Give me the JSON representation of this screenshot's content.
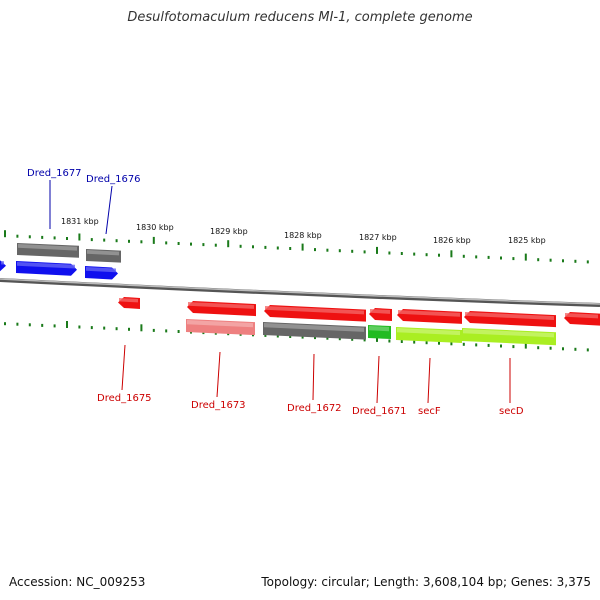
{
  "title": "Desulfotomaculum reducens MI-1, complete genome",
  "footer": {
    "accession": "Accession: NC_009253",
    "info": "Topology: circular; Length: 3,608,104 bp; Genes: 3,375"
  },
  "colors": {
    "forward_label": "#0000aa",
    "reverse_label": "#cc0000",
    "backbone": "#888888",
    "ticks": "#1a7a1a",
    "blue": "#1010ee",
    "red": "#ee1111",
    "gray": "#666666",
    "pink": "#ee8080",
    "green": "#22bb22",
    "lime": "#aaee22"
  },
  "scale_ticks": [
    {
      "label": "1831 kbp"
    },
    {
      "label": "1830 kbp"
    },
    {
      "label": "1829 kbp"
    },
    {
      "label": "1828 kbp"
    },
    {
      "label": "1827 kbp"
    },
    {
      "label": "1826 kbp"
    },
    {
      "label": "1825 kbp"
    }
  ],
  "genes_forward": [
    {
      "label": "Dred_1677"
    },
    {
      "label": "Dred_1676"
    }
  ],
  "genes_reverse": [
    {
      "label": "Dred_1675"
    },
    {
      "label": "Dred_1673"
    },
    {
      "label": "Dred_1672"
    },
    {
      "label": "Dred_1671"
    },
    {
      "label": "secF"
    },
    {
      "label": "secD"
    }
  ]
}
